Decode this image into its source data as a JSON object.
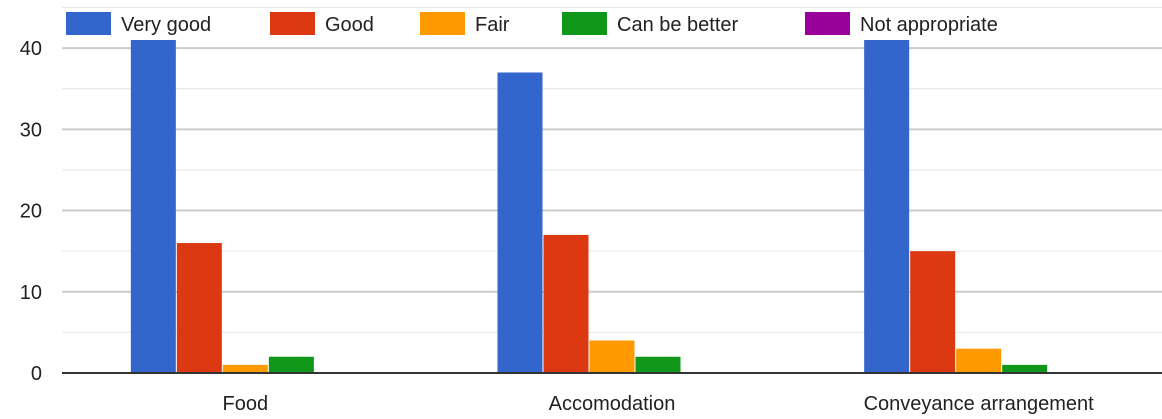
{
  "chart_data": {
    "type": "bar",
    "categories": [
      "Food",
      "Accomodation",
      "Conveyance arrangement"
    ],
    "series": [
      {
        "name": "Very good",
        "color": "#3366cc",
        "values": [
          41,
          37,
          41
        ]
      },
      {
        "name": "Good",
        "color": "#dc3912",
        "values": [
          16,
          17,
          15
        ]
      },
      {
        "name": "Fair",
        "color": "#ff9900",
        "values": [
          1,
          4,
          3
        ]
      },
      {
        "name": "Can be better",
        "color": "#109618",
        "values": [
          2,
          2,
          1
        ]
      },
      {
        "name": "Not appropriate",
        "color": "#990099",
        "values": [
          0,
          0,
          0
        ]
      }
    ],
    "yticks": [
      0,
      10,
      20,
      30,
      40
    ],
    "ylim": [
      0,
      41
    ],
    "grid": true,
    "legend_position": "top"
  }
}
